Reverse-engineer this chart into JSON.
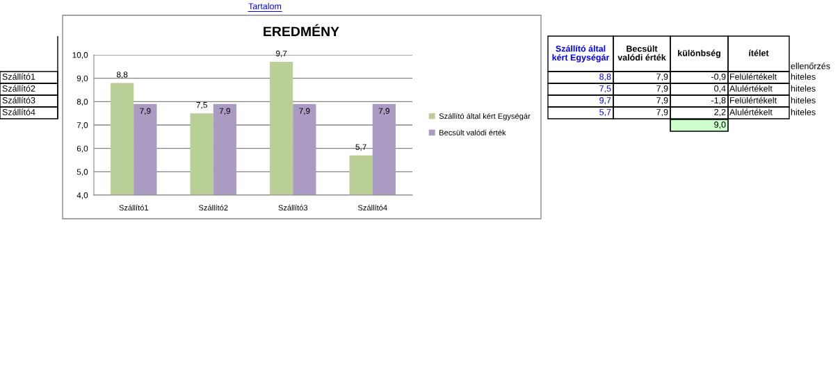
{
  "chart_data": [
    {
      "type": "bar",
      "title": "EREDMÉNY",
      "categories": [
        "Szállító1",
        "Szállító2",
        "Szállító3",
        "Szállító4"
      ],
      "series": [
        {
          "name": "Szállító által kért Egységár",
          "color": "#b9cf96",
          "values": [
            8.8,
            7.5,
            9.7,
            5.7
          ],
          "value_labels": [
            "8,8",
            "7,5",
            "9,7",
            "5,7"
          ]
        },
        {
          "name": "Becsült valódi érték",
          "color": "#a99bc1",
          "values": [
            7.9,
            7.9,
            7.9,
            7.9
          ],
          "value_labels": [
            "7,9",
            "7,9",
            "7,9",
            "7,9"
          ]
        }
      ],
      "ylim": [
        4,
        10
      ],
      "yticks": [
        {
          "value": 4,
          "label": "4,0"
        },
        {
          "value": 5,
          "label": "5,0"
        },
        {
          "value": 6,
          "label": "6,0"
        },
        {
          "value": 7,
          "label": "7,0"
        },
        {
          "value": 8,
          "label": "8,0"
        },
        {
          "value": 9,
          "label": "9,0"
        },
        {
          "value": 10,
          "label": "10,0"
        }
      ],
      "grid": "y",
      "legend": "right"
    },
    {
      "type": "other",
      "categories": [
        "Szállító által\nkért Egységár",
        "Becsült\nvalódi érték",
        "különbség",
        "ítélet",
        "ellenőrzés"
      ],
      "colors": [
        "#0000ff",
        "#000000",
        "#000000",
        "#000000",
        "#000000"
      ],
      "y_categories": [
        "Szállító1",
        "Szállító2",
        "Szállító3",
        "Szállító4"
      ],
      "cell_labels": [
        [
          "8,8",
          "7,9",
          "-0,9",
          "Felülértékelt",
          "hiteles"
        ],
        [
          "7,5",
          "7,9",
          "0,4",
          "Alulértékelt",
          "hiteles"
        ],
        [
          "9,7",
          "7,9",
          "-1,8",
          "Felülértékelt",
          "hiteles"
        ],
        [
          "5,7",
          "7,9",
          "2,2",
          "Alulértékelt",
          "hiteles"
        ]
      ],
      "annotations": [
        "Tartalom",
        "9,0"
      ]
    }
  ]
}
